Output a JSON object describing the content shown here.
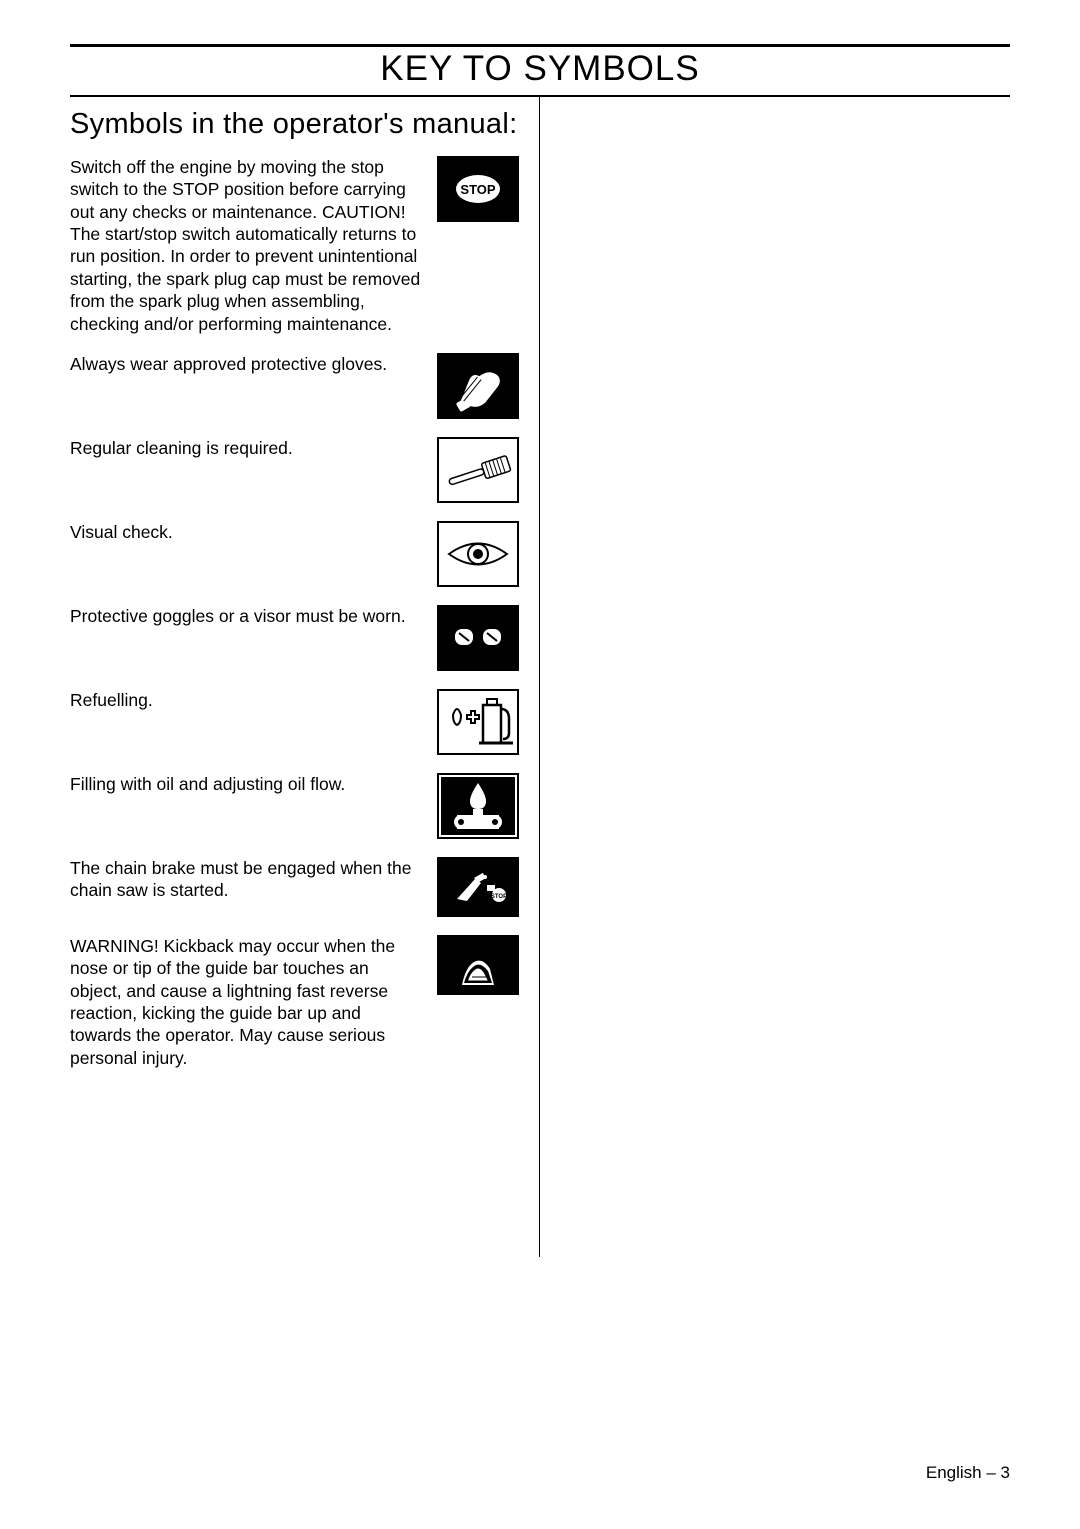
{
  "page_title": "KEY TO SYMBOLS",
  "section_title": "Symbols in the operator's manual:",
  "entries": [
    {
      "text": "Switch off the engine by moving the stop switch to the STOP position before carrying out any checks or maintenance. CAUTION! The start/stop switch automatically returns to run position. In order to prevent unintentional starting, the spark plug cap must be removed from the spark plug when assembling, checking and/or performing maintenance.",
      "icon": "stop"
    },
    {
      "text": "Always wear approved protective gloves.",
      "icon": "gloves"
    },
    {
      "text": "Regular cleaning is required.",
      "icon": "brush"
    },
    {
      "text": "Visual check.",
      "icon": "eye"
    },
    {
      "text": "Protective goggles or a visor must be worn.",
      "icon": "goggles"
    },
    {
      "text": "Refuelling.",
      "icon": "fuel"
    },
    {
      "text": "Filling with oil and adjusting oil flow.",
      "icon": "oil"
    },
    {
      "text": "The chain brake must be engaged when the chain saw is started.",
      "icon": "brake"
    },
    {
      "text": "WARNING! Kickback may occur when the nose or tip of the guide bar touches an object, and cause a lightning fast reverse reaction, kicking the guide bar up and towards the operator. May cause serious personal injury.",
      "icon": "kickback"
    }
  ],
  "footer": "English – 3",
  "colors": {
    "black": "#000000",
    "white": "#ffffff"
  },
  "icon_size": {
    "w": 82,
    "h": 66
  }
}
